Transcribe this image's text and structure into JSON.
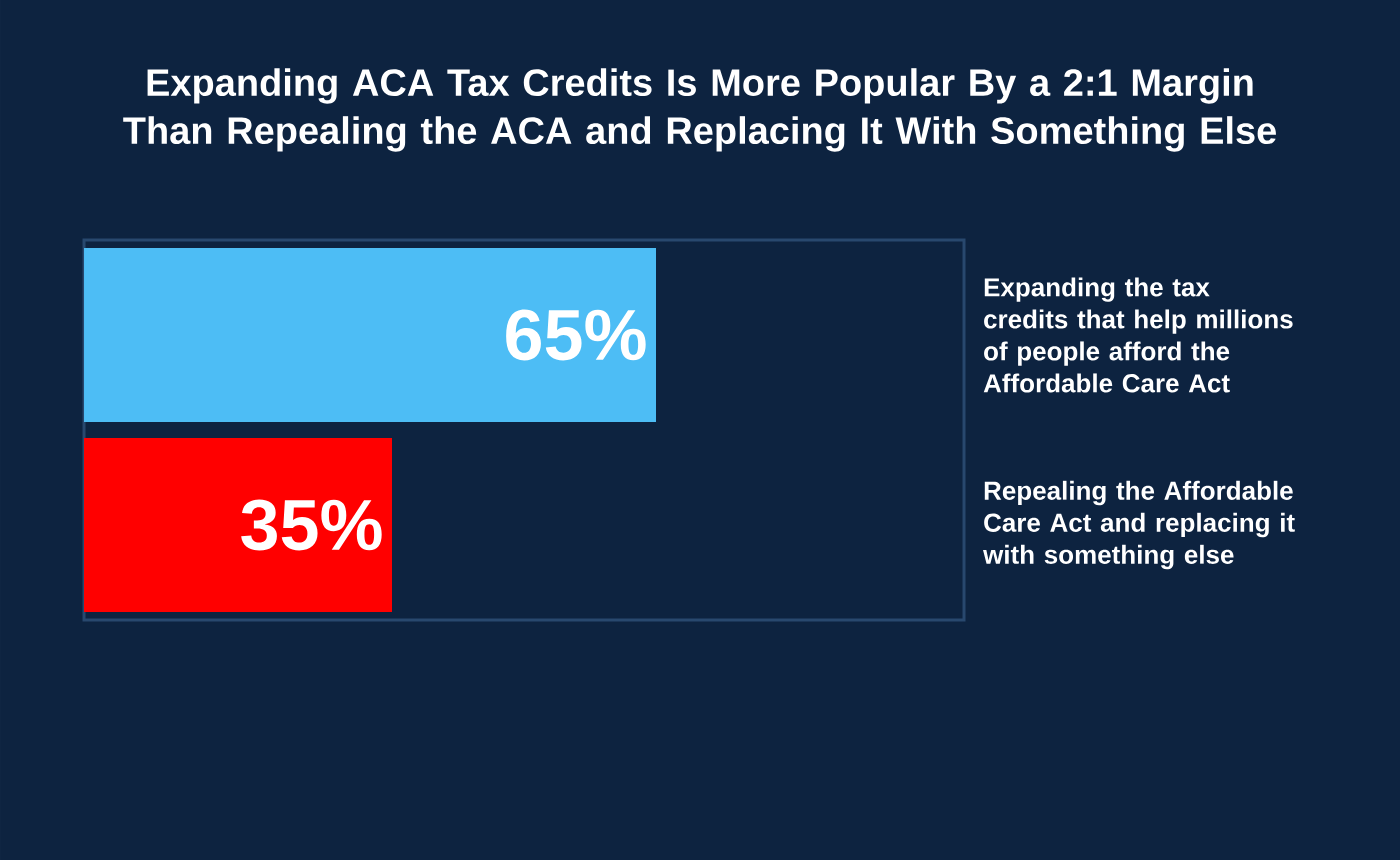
{
  "chart_data": {
    "type": "bar",
    "orientation": "horizontal",
    "title": "Expanding ACA Tax Credits Is More Popular By a 2:1 Margin Than Repealing the ACA and Replacing It With Something Else",
    "categories": [
      "Expanding the tax credits that help millions of people afford the Affordable Care Act",
      "Repealing the Affordable Care Act and replacing it with something else"
    ],
    "values": [
      65,
      35
    ],
    "colors": [
      "#4dbdf5",
      "#ff0000"
    ],
    "value_labels": [
      "65%",
      "35%"
    ],
    "xlim": [
      0,
      100
    ],
    "tick_labels": "y"
  }
}
